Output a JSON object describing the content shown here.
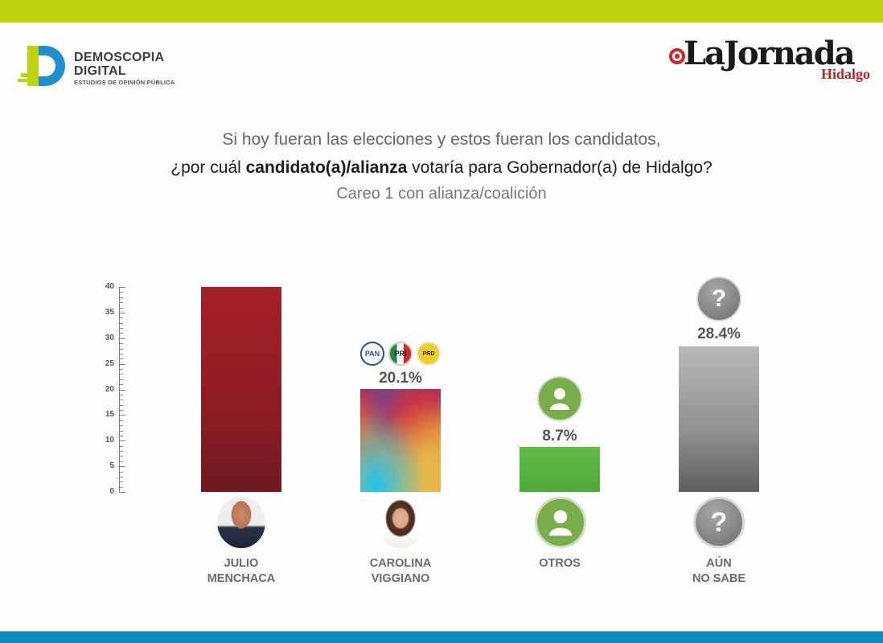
{
  "header": {
    "left_logo": {
      "line1": "DEMOSCOPIA",
      "line2": "DIGITAL",
      "tagline": "ESTUDIOS DE OPINIÓN PÚBLICA"
    },
    "right_logo": {
      "name": "LaJornada",
      "region": "Hidalgo"
    }
  },
  "question": {
    "line1": "Si hoy fueran las elecciones y estos fueran los candidatos,",
    "line2_pre": "¿por cuál ",
    "line2_bold": "candidato(a)/alianza",
    "line2_post": " votaría para Gobernador(a) de Hidalgo?",
    "line3": "Careo 1 con alianza/coalición"
  },
  "colors": {
    "top_bar": "#bfd20f",
    "bottom_bar": "#0a8cbf",
    "menchaca": "#9e1d26",
    "otros": "#5db544",
    "no_sabe": "#8a8a8a"
  },
  "parties": [
    "PAN",
    "PRI",
    "PRD"
  ],
  "chart_data": {
    "type": "bar",
    "title": "Si hoy fueran las elecciones y estos fueran los candidatos, ¿por cuál candidato(a)/alianza votaría para Gobernador(a) de Hidalgo? Careo 1 con alianza/coalición",
    "categories": [
      "JULIO MENCHACA",
      "CAROLINA VIGGIANO",
      "OTROS",
      "AÚN NO SABE"
    ],
    "values": [
      40,
      20.1,
      8.7,
      28.4
    ],
    "labels": [
      "",
      "20.1%",
      "8.7%",
      "28.4%"
    ],
    "xlabel": "",
    "ylabel": "",
    "ylim": [
      0,
      40
    ],
    "yticks": [
      0,
      5,
      10,
      15,
      20,
      25,
      30,
      35,
      40
    ],
    "grid": false,
    "legend": "none"
  },
  "candidates": [
    {
      "line1": "JULIO",
      "line2": "MENCHACA",
      "value_label": ""
    },
    {
      "line1": "CAROLINA",
      "line2": "VIGGIANO",
      "value_label": "20.1%"
    },
    {
      "line1": "OTROS",
      "line2": "",
      "value_label": "8.7%"
    },
    {
      "line1": "AÚN",
      "line2": "NO SABE",
      "value_label": "28.4%"
    }
  ]
}
